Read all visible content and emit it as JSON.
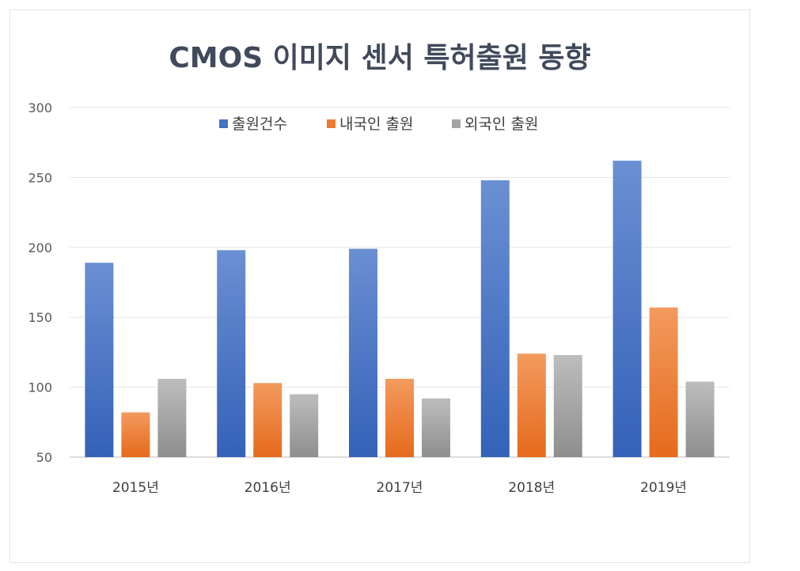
{
  "chart_data": {
    "type": "bar",
    "title": "CMOS 이미지 센서 특허출원 동향",
    "categories": [
      "2015년",
      "2016년",
      "2017년",
      "2018년",
      "2019년"
    ],
    "series": [
      {
        "name": "출원건수",
        "values": [
          189,
          198,
          199,
          248,
          262
        ],
        "color": "#4472c4"
      },
      {
        "name": "내국인 출원",
        "values": [
          82,
          103,
          106,
          124,
          157
        ],
        "color": "#ed7d31"
      },
      {
        "name": "외국인 출원",
        "values": [
          106,
          95,
          92,
          123,
          104
        ],
        "color": "#a5a5a5"
      }
    ],
    "ylim": [
      50,
      300
    ],
    "yticks": [
      50,
      100,
      150,
      200,
      250,
      300
    ],
    "grid": true,
    "legend_position": "top"
  }
}
